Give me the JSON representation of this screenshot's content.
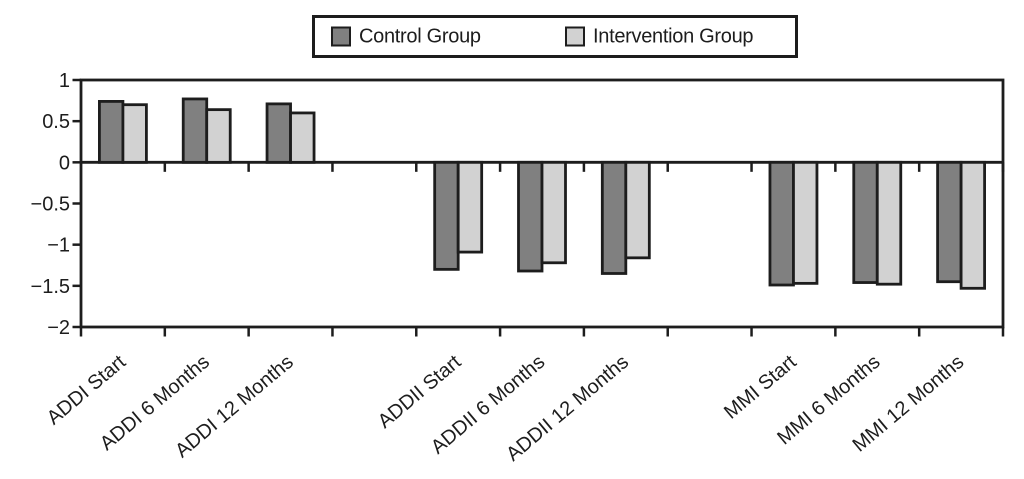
{
  "legend": {
    "items": [
      {
        "label": "Control Group",
        "color": "#808080"
      },
      {
        "label": "Intervention Group",
        "color": "#d2d2d2"
      }
    ]
  },
  "chart_data": {
    "type": "bar",
    "title": "",
    "xlabel": "",
    "ylabel": "",
    "categories": [
      "ADDI Start",
      "ADDI 6 Months",
      "ADDI 12 Months",
      "ADDII Start",
      "ADDII 6 Months",
      "ADDII 12 Months",
      "MMI Start",
      "MMI 6 Months",
      "MMI 12 Months"
    ],
    "series": [
      {
        "name": "Control Group",
        "color": "#808080",
        "values": [
          0.74,
          0.77,
          0.71,
          -1.3,
          -1.32,
          -1.35,
          -1.49,
          -1.46,
          -1.45
        ]
      },
      {
        "name": "Intervention Group",
        "color": "#d2d2d2",
        "values": [
          0.7,
          0.64,
          0.6,
          -1.09,
          -1.22,
          -1.16,
          -1.47,
          -1.48,
          -1.53
        ]
      }
    ],
    "ylim": [
      -2,
      1
    ],
    "yticks": [
      1,
      0.5,
      0,
      -0.5,
      -1,
      -1.5,
      -2
    ],
    "ytick_labels": [
      "1",
      "0.5",
      "0",
      "−0.5",
      "−1",
      "−1.5",
      "−2"
    ],
    "grid": false,
    "legend_position": "top-center",
    "axis_color": "#1d1d1d",
    "group_slots": [
      0,
      1,
      2,
      4,
      5,
      6,
      8,
      9,
      10
    ],
    "total_slots": 11,
    "x_label_rotation_deg": -40
  }
}
